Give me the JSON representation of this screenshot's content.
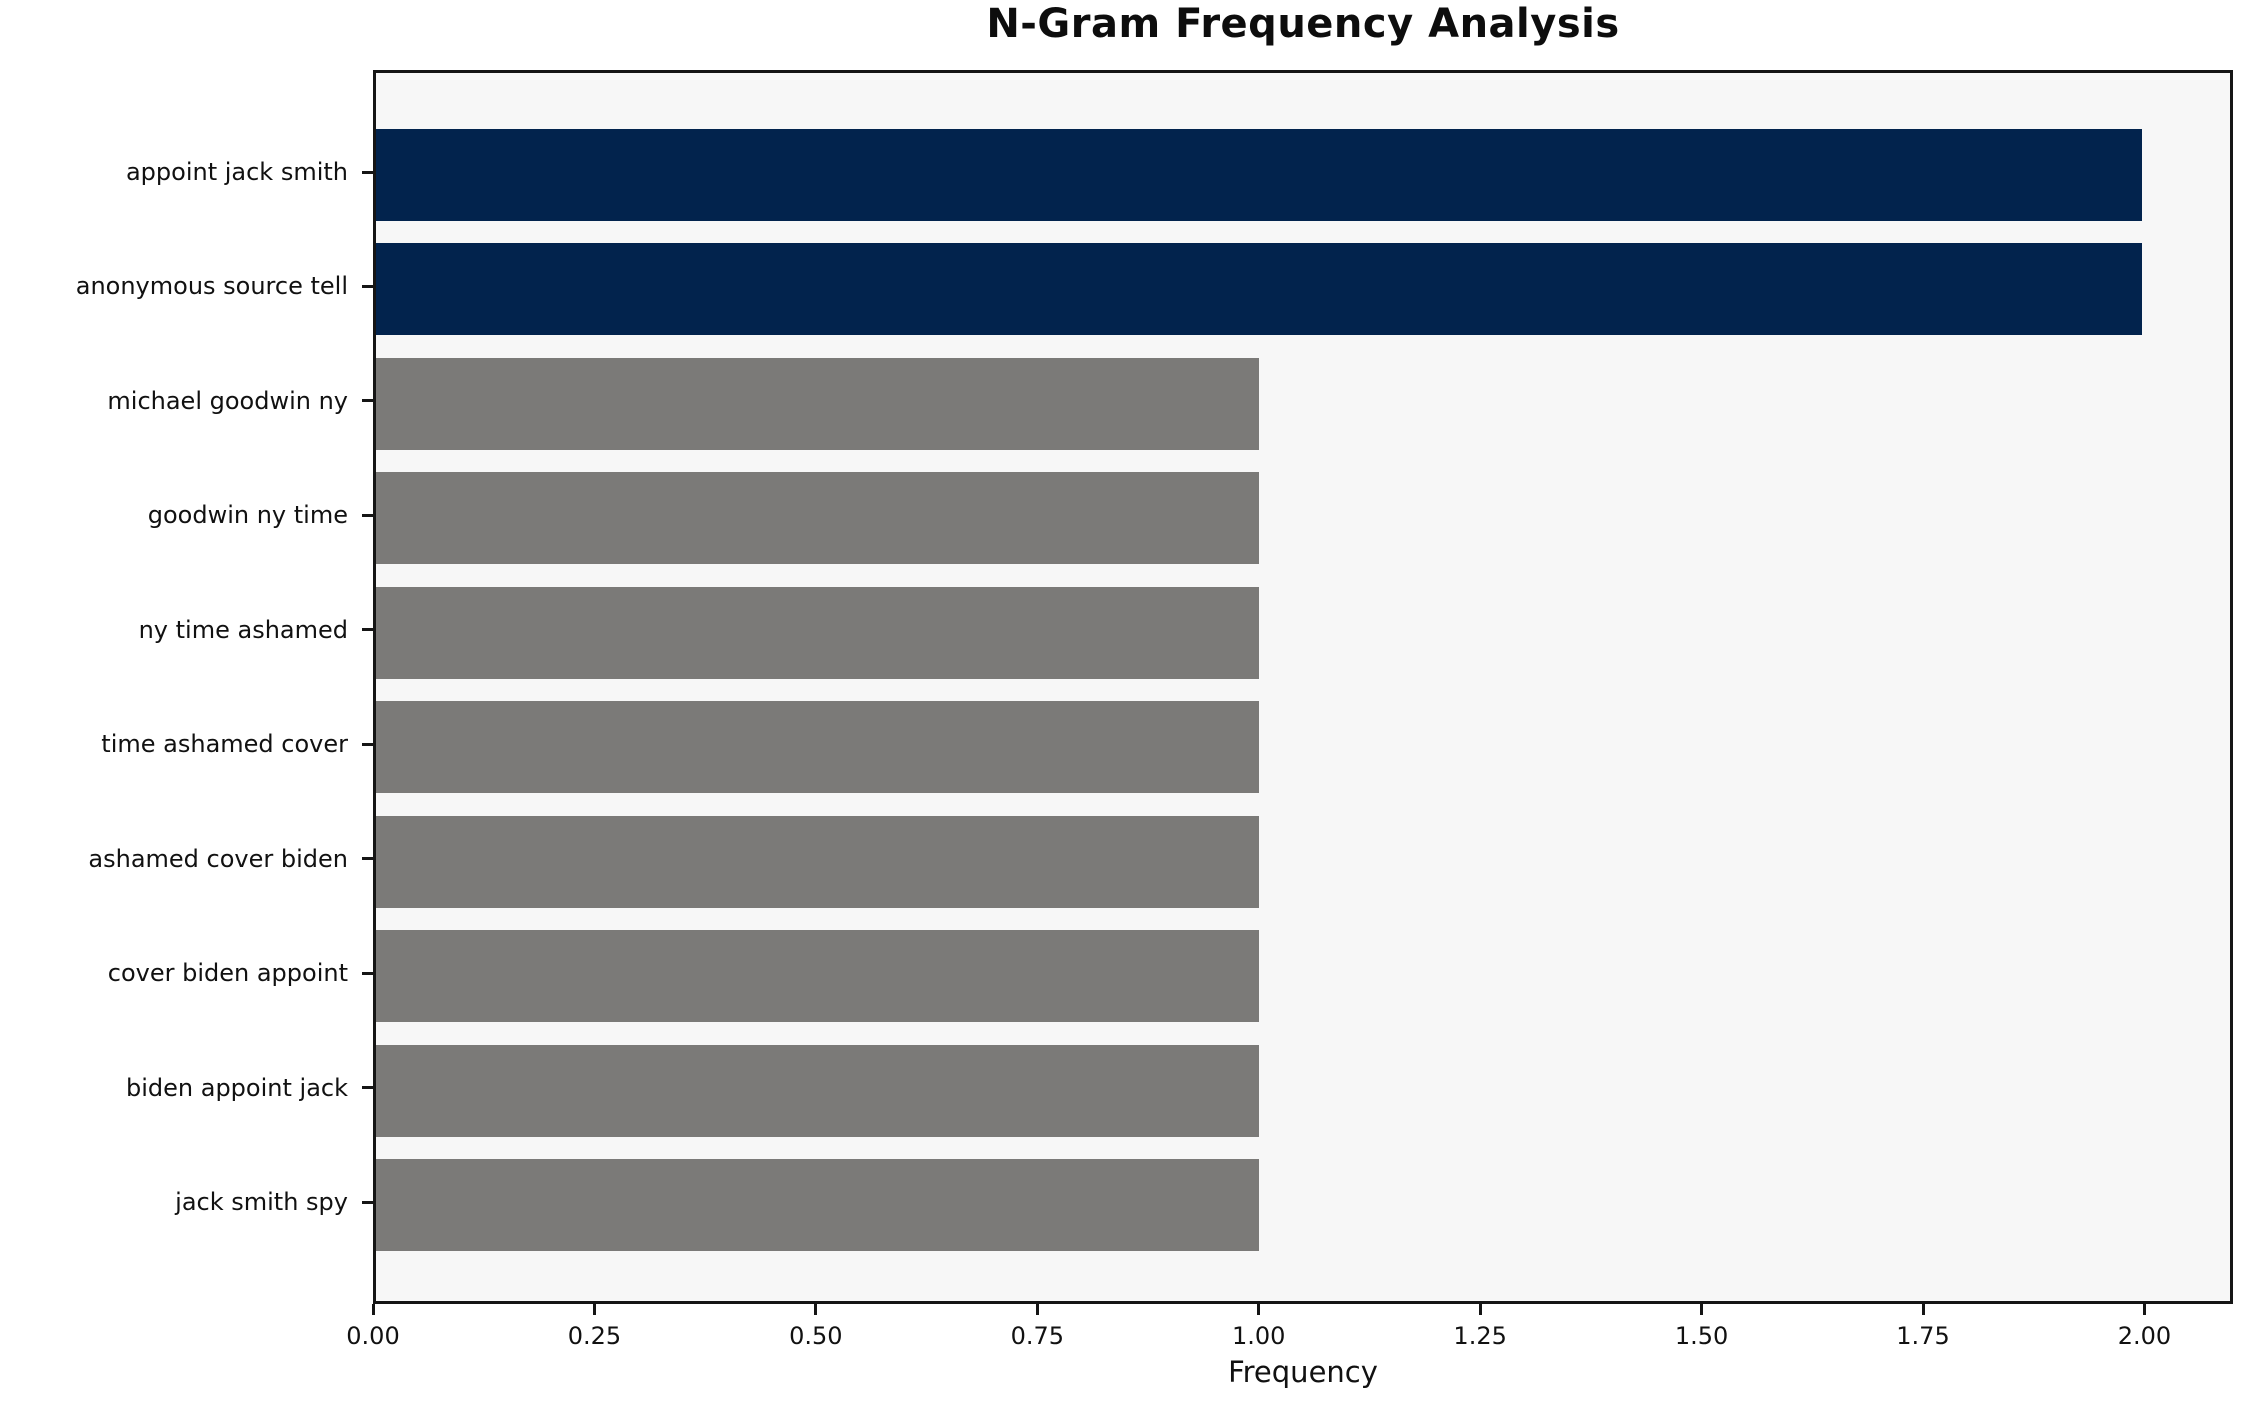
{
  "chart_data": {
    "type": "bar",
    "orientation": "horizontal",
    "title": "N-Gram Frequency Analysis",
    "xlabel": "Frequency",
    "ylabel": "",
    "categories": [
      "appoint jack smith",
      "anonymous source tell",
      "michael goodwin ny",
      "goodwin ny time",
      "ny time ashamed",
      "time ashamed cover",
      "ashamed cover biden",
      "cover biden appoint",
      "biden appoint jack",
      "jack smith spy"
    ],
    "values": [
      2,
      2,
      1,
      1,
      1,
      1,
      1,
      1,
      1,
      1
    ],
    "bar_colors": [
      "#02234d",
      "#02234d",
      "#7b7a78",
      "#7b7a78",
      "#7b7a78",
      "#7b7a78",
      "#7b7a78",
      "#7b7a78",
      "#7b7a78",
      "#7b7a78"
    ],
    "xlim": [
      0,
      2.1
    ],
    "xticks": [
      {
        "value": 0.0,
        "label": "0.00"
      },
      {
        "value": 0.25,
        "label": "0.25"
      },
      {
        "value": 0.5,
        "label": "0.50"
      },
      {
        "value": 0.75,
        "label": "0.75"
      },
      {
        "value": 1.0,
        "label": "1.00"
      },
      {
        "value": 1.25,
        "label": "1.25"
      },
      {
        "value": 1.5,
        "label": "1.50"
      },
      {
        "value": 1.75,
        "label": "1.75"
      },
      {
        "value": 2.0,
        "label": "2.00"
      }
    ],
    "grid": false,
    "legend": null,
    "plot_background": "#f7f7f7",
    "figure_background": "#ffffff",
    "spine_color": "#151515"
  }
}
